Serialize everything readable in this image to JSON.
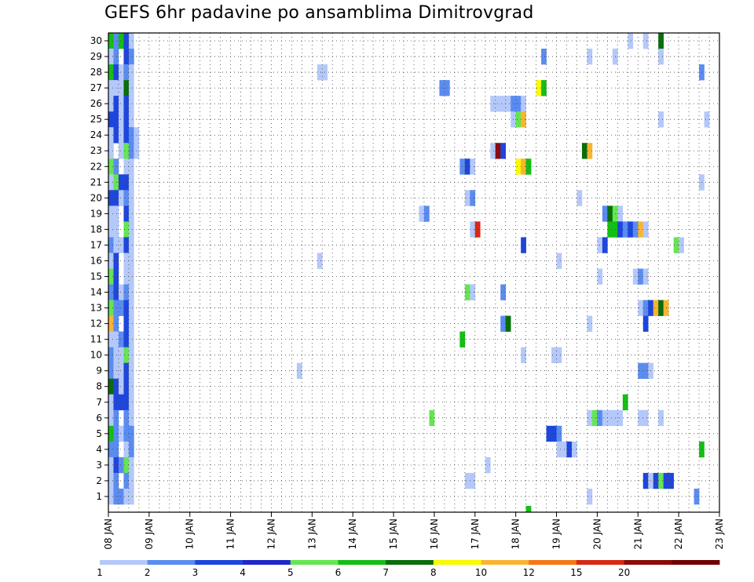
{
  "title": "GEFS 6hr padavine po ansamblima Dimitrovgrad",
  "chart_data": {
    "type": "heatmap",
    "title": "GEFS 6hr padavine po ansamblima Dimitrovgrad",
    "x_tick_labels": [
      "08 JAN",
      "09 JAN",
      "10 JAN",
      "11 JAN",
      "12 JAN",
      "13 JAN",
      "14 JAN",
      "15 JAN",
      "16 JAN",
      "17 JAN",
      "18 JAN",
      "19 JAN",
      "20 JAN",
      "21 JAN",
      "22 JAN",
      "23 JAN"
    ],
    "y_tick_labels": [
      1,
      2,
      3,
      4,
      5,
      6,
      7,
      8,
      9,
      10,
      11,
      12,
      13,
      14,
      15,
      16,
      17,
      18,
      19,
      20,
      21,
      22,
      23,
      24,
      25,
      26,
      27,
      28,
      29,
      30
    ],
    "ylim": [
      0,
      30
    ],
    "steps_per_day": 4,
    "grid": true,
    "legend": {
      "position": "bottom",
      "levels": [
        "1",
        "2",
        "3",
        "4",
        "5",
        "6",
        "7",
        "8",
        "10",
        "12",
        "15",
        "20"
      ],
      "colors": [
        "#b4c8fa",
        "#5a8cf0",
        "#1e46dc",
        "#1e28c8",
        "#64e650",
        "#14be14",
        "#0a6e0a",
        "#fafa00",
        "#fab432",
        "#f57814",
        "#d72814",
        "#8c0a0a",
        "#6e0000"
      ]
    },
    "category_scale": [
      "#b4c8fa",
      "#5a8cf0",
      "#1e46dc",
      "#64e650",
      "#14be14",
      "#0a6e0a",
      "#fafa00",
      "#fab432",
      "#f57814",
      "#d72814",
      "#8c0a0a"
    ],
    "cells": [
      [
        30,
        0,
        5
      ],
      [
        30,
        1,
        2
      ],
      [
        30,
        2,
        5
      ],
      [
        30,
        3,
        3
      ],
      [
        30,
        4,
        1
      ],
      [
        30,
        102,
        1
      ],
      [
        30,
        105,
        1
      ],
      [
        30,
        108,
        6
      ],
      [
        29,
        0,
        1
      ],
      [
        29,
        1,
        2
      ],
      [
        29,
        3,
        3
      ],
      [
        29,
        4,
        2
      ],
      [
        29,
        85,
        2
      ],
      [
        29,
        94,
        1
      ],
      [
        29,
        99,
        1
      ],
      [
        29,
        108,
        1
      ],
      [
        28,
        0,
        5
      ],
      [
        28,
        1,
        3
      ],
      [
        28,
        2,
        1
      ],
      [
        28,
        3,
        2
      ],
      [
        28,
        4,
        1
      ],
      [
        28,
        41,
        1
      ],
      [
        28,
        42,
        1
      ],
      [
        28,
        116,
        2
      ],
      [
        27,
        0,
        1
      ],
      [
        27,
        1,
        1
      ],
      [
        27,
        2,
        1
      ],
      [
        27,
        3,
        6
      ],
      [
        27,
        4,
        1
      ],
      [
        27,
        65,
        2
      ],
      [
        27,
        66,
        2
      ],
      [
        27,
        84,
        7
      ],
      [
        27,
        85,
        5
      ],
      [
        26,
        0,
        1
      ],
      [
        26,
        1,
        3
      ],
      [
        26,
        2,
        1
      ],
      [
        26,
        3,
        3
      ],
      [
        26,
        4,
        1
      ],
      [
        26,
        75,
        1
      ],
      [
        26,
        76,
        1
      ],
      [
        26,
        77,
        1
      ],
      [
        26,
        78,
        1
      ],
      [
        26,
        79,
        2
      ],
      [
        26,
        80,
        2
      ],
      [
        26,
        81,
        1
      ],
      [
        25,
        0,
        3
      ],
      [
        25,
        1,
        3
      ],
      [
        25,
        2,
        1
      ],
      [
        25,
        3,
        3
      ],
      [
        25,
        4,
        1
      ],
      [
        25,
        79,
        1
      ],
      [
        25,
        80,
        4
      ],
      [
        25,
        81,
        8
      ],
      [
        25,
        108,
        1
      ],
      [
        25,
        117,
        1
      ],
      [
        24,
        0,
        1
      ],
      [
        24,
        1,
        3
      ],
      [
        24,
        2,
        1
      ],
      [
        24,
        3,
        3
      ],
      [
        24,
        4,
        2
      ],
      [
        24,
        5,
        1
      ],
      [
        23,
        0,
        1
      ],
      [
        23,
        2,
        1
      ],
      [
        23,
        3,
        4
      ],
      [
        23,
        4,
        2
      ],
      [
        23,
        5,
        1
      ],
      [
        23,
        75,
        1
      ],
      [
        23,
        76,
        11
      ],
      [
        23,
        77,
        3
      ],
      [
        23,
        93,
        6
      ],
      [
        23,
        94,
        8
      ],
      [
        22,
        0,
        4
      ],
      [
        22,
        1,
        2
      ],
      [
        22,
        3,
        1
      ],
      [
        22,
        4,
        1
      ],
      [
        22,
        69,
        2
      ],
      [
        22,
        70,
        3
      ],
      [
        22,
        71,
        1
      ],
      [
        22,
        80,
        7
      ],
      [
        22,
        81,
        8
      ],
      [
        22,
        82,
        5
      ],
      [
        21,
        0,
        1
      ],
      [
        21,
        1,
        4
      ],
      [
        21,
        2,
        3
      ],
      [
        21,
        3,
        3
      ],
      [
        21,
        4,
        1
      ],
      [
        21,
        116,
        1
      ],
      [
        20,
        0,
        3
      ],
      [
        20,
        1,
        3
      ],
      [
        20,
        2,
        1
      ],
      [
        20,
        3,
        2
      ],
      [
        20,
        4,
        1
      ],
      [
        20,
        70,
        1
      ],
      [
        20,
        71,
        2
      ],
      [
        20,
        92,
        1
      ],
      [
        19,
        0,
        1
      ],
      [
        19,
        1,
        1
      ],
      [
        19,
        3,
        3
      ],
      [
        19,
        4,
        1
      ],
      [
        19,
        61,
        1
      ],
      [
        19,
        62,
        2
      ],
      [
        19,
        97,
        2
      ],
      [
        19,
        98,
        6
      ],
      [
        19,
        99,
        4
      ],
      [
        19,
        100,
        1
      ],
      [
        18,
        0,
        1
      ],
      [
        18,
        1,
        1
      ],
      [
        18,
        3,
        4
      ],
      [
        18,
        4,
        1
      ],
      [
        18,
        71,
        1
      ],
      [
        18,
        72,
        10
      ],
      [
        18,
        98,
        5
      ],
      [
        18,
        99,
        5
      ],
      [
        18,
        100,
        3
      ],
      [
        18,
        101,
        2
      ],
      [
        18,
        102,
        3
      ],
      [
        18,
        103,
        2
      ],
      [
        18,
        104,
        8
      ],
      [
        18,
        105,
        1
      ],
      [
        17,
        0,
        2
      ],
      [
        17,
        1,
        1
      ],
      [
        17,
        2,
        1
      ],
      [
        17,
        3,
        3
      ],
      [
        17,
        4,
        1
      ],
      [
        17,
        81,
        3
      ],
      [
        17,
        96,
        1
      ],
      [
        17,
        97,
        3
      ],
      [
        17,
        111,
        4
      ],
      [
        17,
        112,
        1
      ],
      [
        16,
        0,
        1
      ],
      [
        16,
        1,
        3
      ],
      [
        16,
        3,
        1
      ],
      [
        16,
        4,
        1
      ],
      [
        16,
        41,
        1
      ],
      [
        16,
        88,
        1
      ],
      [
        15,
        0,
        4
      ],
      [
        15,
        1,
        3
      ],
      [
        15,
        3,
        1
      ],
      [
        15,
        4,
        1
      ],
      [
        15,
        96,
        1
      ],
      [
        15,
        103,
        1
      ],
      [
        15,
        104,
        2
      ],
      [
        15,
        105,
        1
      ],
      [
        14,
        0,
        2
      ],
      [
        14,
        1,
        3
      ],
      [
        14,
        2,
        1
      ],
      [
        14,
        3,
        2
      ],
      [
        14,
        4,
        1
      ],
      [
        14,
        70,
        4
      ],
      [
        14,
        71,
        1
      ],
      [
        14,
        77,
        2
      ],
      [
        13,
        0,
        4
      ],
      [
        13,
        1,
        2
      ],
      [
        13,
        2,
        2
      ],
      [
        13,
        3,
        3
      ],
      [
        13,
        4,
        1
      ],
      [
        13,
        104,
        1
      ],
      [
        13,
        105,
        2
      ],
      [
        13,
        106,
        3
      ],
      [
        13,
        107,
        8
      ],
      [
        13,
        108,
        6
      ],
      [
        13,
        109,
        8
      ],
      [
        12,
        0,
        8
      ],
      [
        12,
        1,
        2
      ],
      [
        12,
        3,
        3
      ],
      [
        12,
        4,
        1
      ],
      [
        12,
        77,
        2
      ],
      [
        12,
        78,
        6
      ],
      [
        12,
        94,
        1
      ],
      [
        12,
        105,
        3
      ],
      [
        11,
        0,
        1
      ],
      [
        11,
        1,
        1
      ],
      [
        11,
        2,
        2
      ],
      [
        11,
        3,
        3
      ],
      [
        11,
        4,
        1
      ],
      [
        11,
        69,
        5
      ],
      [
        10,
        0,
        2
      ],
      [
        10,
        1,
        1
      ],
      [
        10,
        2,
        1
      ],
      [
        10,
        3,
        4
      ],
      [
        10,
        4,
        1
      ],
      [
        10,
        81,
        1
      ],
      [
        10,
        87,
        1
      ],
      [
        10,
        88,
        1
      ],
      [
        9,
        0,
        2
      ],
      [
        9,
        1,
        1
      ],
      [
        9,
        2,
        1
      ],
      [
        9,
        3,
        3
      ],
      [
        9,
        4,
        1
      ],
      [
        9,
        37,
        1
      ],
      [
        9,
        104,
        2
      ],
      [
        9,
        105,
        2
      ],
      [
        9,
        106,
        1
      ],
      [
        8,
        0,
        6
      ],
      [
        8,
        1,
        3
      ],
      [
        8,
        2,
        1
      ],
      [
        8,
        3,
        3
      ],
      [
        8,
        4,
        1
      ],
      [
        7,
        0,
        1
      ],
      [
        7,
        1,
        3
      ],
      [
        7,
        2,
        3
      ],
      [
        7,
        3,
        3
      ],
      [
        7,
        4,
        1
      ],
      [
        7,
        101,
        5
      ],
      [
        6,
        0,
        1
      ],
      [
        6,
        1,
        2
      ],
      [
        6,
        3,
        2
      ],
      [
        6,
        4,
        1
      ],
      [
        6,
        63,
        4
      ],
      [
        6,
        94,
        1
      ],
      [
        6,
        95,
        4
      ],
      [
        6,
        96,
        2
      ],
      [
        6,
        97,
        1
      ],
      [
        6,
        98,
        1
      ],
      [
        6,
        99,
        1
      ],
      [
        6,
        100,
        1
      ],
      [
        6,
        104,
        1
      ],
      [
        6,
        105,
        1
      ],
      [
        6,
        108,
        1
      ],
      [
        5,
        0,
        5
      ],
      [
        5,
        1,
        2
      ],
      [
        5,
        2,
        1
      ],
      [
        5,
        3,
        2
      ],
      [
        5,
        4,
        2
      ],
      [
        5,
        86,
        3
      ],
      [
        5,
        87,
        3
      ],
      [
        5,
        88,
        2
      ],
      [
        4,
        0,
        2
      ],
      [
        4,
        1,
        2
      ],
      [
        4,
        3,
        1
      ],
      [
        4,
        4,
        2
      ],
      [
        4,
        88,
        1
      ],
      [
        4,
        89,
        1
      ],
      [
        4,
        90,
        3
      ],
      [
        4,
        91,
        1
      ],
      [
        4,
        116,
        5
      ],
      [
        3,
        0,
        1
      ],
      [
        3,
        1,
        3
      ],
      [
        3,
        2,
        2
      ],
      [
        3,
        3,
        4
      ],
      [
        3,
        4,
        1
      ],
      [
        3,
        74,
        1
      ],
      [
        2,
        0,
        1
      ],
      [
        2,
        1,
        2
      ],
      [
        2,
        3,
        2
      ],
      [
        2,
        4,
        1
      ],
      [
        2,
        70,
        1
      ],
      [
        2,
        71,
        1
      ],
      [
        2,
        105,
        3
      ],
      [
        2,
        106,
        1
      ],
      [
        2,
        107,
        3
      ],
      [
        2,
        108,
        4
      ],
      [
        2,
        109,
        3
      ],
      [
        2,
        110,
        3
      ],
      [
        1,
        0,
        1
      ],
      [
        1,
        1,
        2
      ],
      [
        1,
        2,
        2
      ],
      [
        1,
        3,
        1
      ],
      [
        1,
        4,
        1
      ],
      [
        1,
        94,
        1
      ],
      [
        1,
        115,
        2
      ],
      [
        0,
        82,
        5
      ]
    ]
  }
}
